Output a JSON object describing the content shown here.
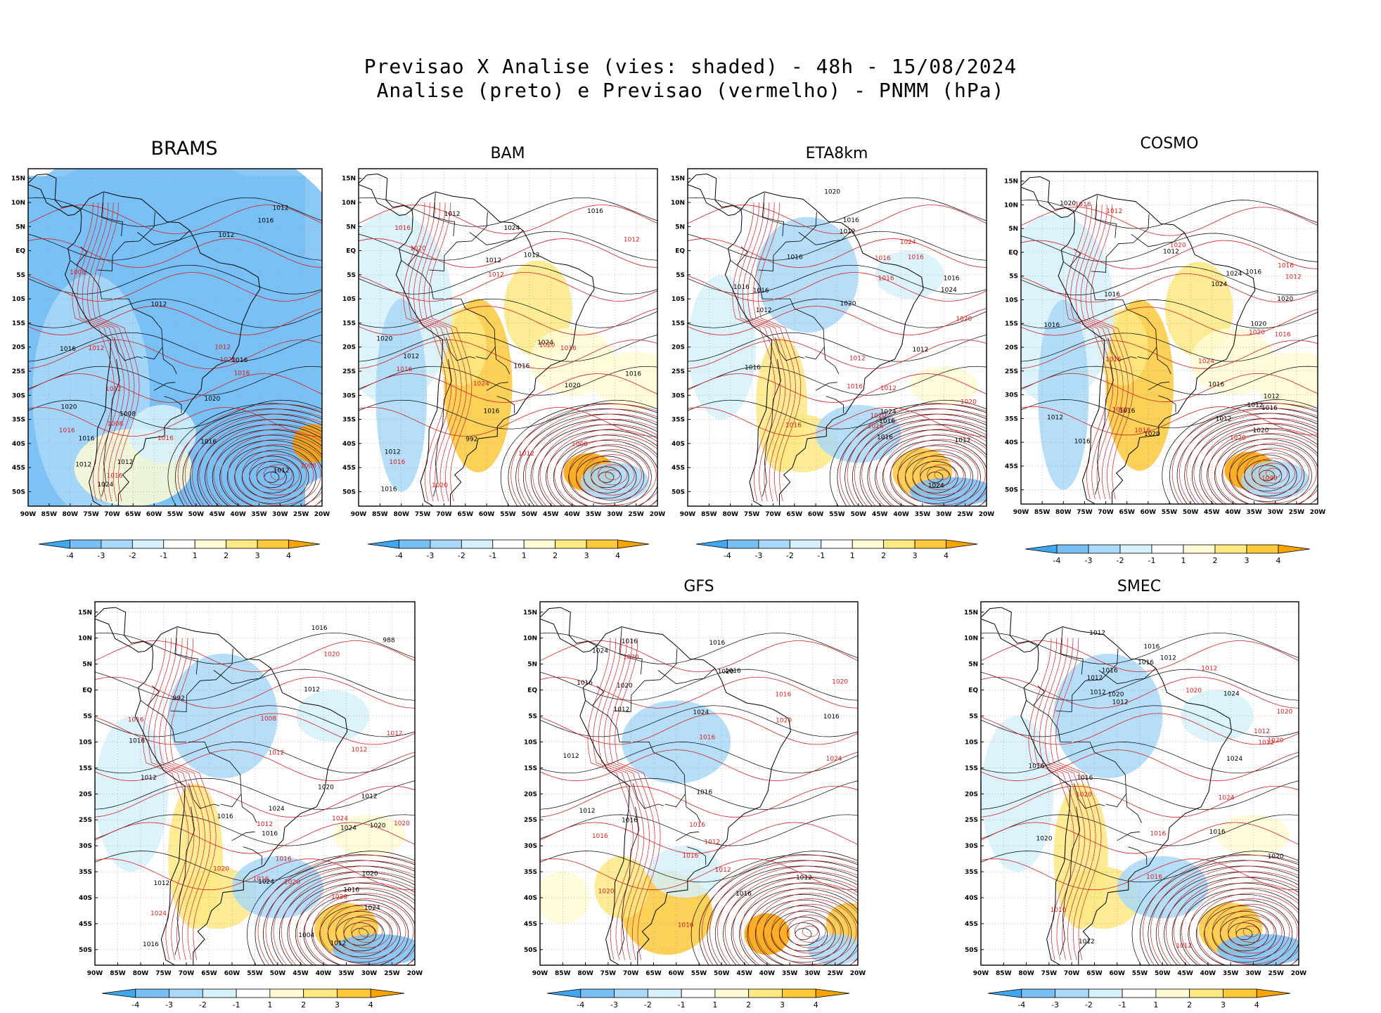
{
  "title": {
    "line1": "Previsao X Analise (vies: shaded) - 48h - 15/08/2024",
    "line2": "Analise (preto) e Previsao (vermelho) - PNMM (hPa)"
  },
  "colors": {
    "shade_neg4": "#3fa6f0",
    "shade_neg3": "#78bff4",
    "shade_neg2": "#a9d8f8",
    "shade_neg1": "#d6f1fb",
    "shade_pos1": "#fffbd6",
    "shade_pos2": "#fde983",
    "shade_pos3": "#fbc93a",
    "shade_pos4": "#f7a300",
    "analysis_isobar": "#000000",
    "forecast_isobar": "#d62020",
    "grid": "#999999",
    "land_outline": "#000000"
  },
  "axes": {
    "lon_ticks": [
      "90W",
      "85W",
      "80W",
      "75W",
      "70W",
      "65W",
      "60W",
      "55W",
      "50W",
      "45W",
      "40W",
      "35W",
      "30W",
      "25W",
      "20W"
    ],
    "lat_ticks": [
      "15N",
      "10N",
      "5N",
      "EQ",
      "5S",
      "10S",
      "15S",
      "20S",
      "25S",
      "30S",
      "35S",
      "40S",
      "45S",
      "50S"
    ]
  },
  "colorbar": {
    "labels": [
      "-4",
      "-3",
      "-2",
      "-1",
      "1",
      "2",
      "3",
      "4"
    ]
  },
  "panels": [
    {
      "id": "brams",
      "name": "BRAMS",
      "bias": "cold",
      "black_labels": [
        "1012",
        "1008",
        "1012",
        "1016",
        "1012",
        "1012",
        "1012",
        "1016",
        "1016",
        "1012",
        "1016",
        "1020",
        "1016",
        "1020",
        "1024"
      ],
      "red_labels": [
        "1008",
        "1008",
        "1012",
        "1012",
        "1008",
        "1016",
        "1016",
        "1016",
        "1012",
        "1016",
        "1020"
      ]
    },
    {
      "id": "bam",
      "name": "BAM",
      "bias": "warm-andes",
      "black_labels": [
        "1016",
        "1016",
        "1012",
        "1012",
        "1012",
        "1016",
        "1012",
        "1020",
        "1024",
        "1012",
        "1020",
        "1024",
        "1016",
        "1016",
        "992"
      ],
      "red_labels": [
        "1012",
        "1016",
        "1020",
        "1016",
        "1016",
        "1012",
        "1020",
        "1024",
        "1016",
        "1020",
        "1012",
        "1008"
      ]
    },
    {
      "id": "eta8km",
      "name": "ETA8km",
      "bias": "mixed",
      "black_labels": [
        "1016",
        "1016",
        "1012",
        "1012",
        "1016",
        "1016",
        "1016",
        "1016",
        "1012",
        "1024",
        "1020",
        "1024",
        "1012",
        "1016",
        "1024",
        "1016",
        "1020"
      ],
      "red_labels": [
        "1016",
        "1016",
        "1016",
        "1016",
        "1020",
        "1016",
        "1016",
        "1020",
        "1024",
        "1012",
        "1020",
        "1012"
      ]
    },
    {
      "id": "cosmo",
      "name": "COSMO",
      "bias": "warm-andes",
      "black_labels": [
        "1016",
        "1012",
        "1016",
        "1012",
        "1020",
        "1016",
        "1016",
        "1016",
        "1020",
        "1024",
        "1020",
        "1012",
        "1016",
        "1012",
        "1020",
        "1016",
        "1012",
        "1024",
        "1020"
      ],
      "red_labels": [
        "1012",
        "1016",
        "1016",
        "1012",
        "1016",
        "1016",
        "1020",
        "1016",
        "1020",
        "1024",
        "1020",
        "1012",
        "1020"
      ]
    },
    {
      "id": "unnamed",
      "name": "",
      "bias": "mixed",
      "black_labels": [
        "1016",
        "1012",
        "1016",
        "1012",
        "1016",
        "1020",
        "1016",
        "1016",
        "1020",
        "1012",
        "1024",
        "1012",
        "1024",
        "1020",
        "1024",
        "1012",
        "1024",
        "1016",
        "988",
        "992",
        "1004"
      ],
      "red_labels": [
        "1016",
        "1016",
        "1012",
        "1012",
        "1020",
        "1008",
        "1012",
        "1016",
        "1020",
        "1020",
        "1012",
        "1024",
        "1024",
        "1020",
        "1020"
      ]
    },
    {
      "id": "gfs",
      "name": "GFS",
      "bias": "warm-patagonia",
      "black_labels": [
        "1016",
        "1012",
        "1016",
        "1012",
        "1016",
        "1020",
        "1012",
        "1016",
        "1012",
        "1016",
        "1016",
        "1024",
        "1024",
        "1020",
        "1016",
        "1016"
      ],
      "red_labels": [
        "1016",
        "1012",
        "1016",
        "1016",
        "1020",
        "1020",
        "1016",
        "1016",
        "1020",
        "1024",
        "1016",
        "1012",
        "1020"
      ]
    },
    {
      "id": "smec",
      "name": "SMEC",
      "bias": "mixed",
      "black_labels": [
        "1016",
        "1012",
        "1016",
        "1016",
        "1012",
        "1012",
        "1016",
        "1020",
        "1012",
        "1016",
        "1012",
        "1024",
        "1024",
        "1020",
        "1016",
        "1012",
        "1020"
      ],
      "red_labels": [
        "1016",
        "1012",
        "1016",
        "1012",
        "1020",
        "1012",
        "1020",
        "1024",
        "1020",
        "1016",
        "1012",
        "1020"
      ]
    }
  ]
}
